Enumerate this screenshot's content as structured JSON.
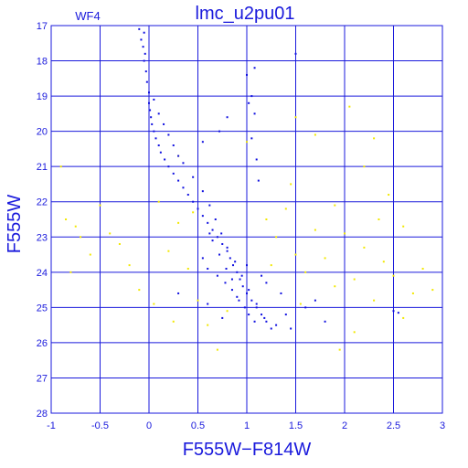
{
  "chart_data": {
    "type": "scatter",
    "title": "lmc_u2pu01",
    "panel_label": "WF4",
    "xlabel": "F555W−F814W",
    "ylabel": "F555W",
    "xlim": [
      -1,
      3
    ],
    "ylim": [
      28,
      17
    ],
    "y_inverted": true,
    "grid": true,
    "xticks": [
      -1,
      -0.5,
      0,
      0.5,
      1,
      1.5,
      2,
      2.5,
      3
    ],
    "xtick_labels": [
      "-1",
      "-0.5",
      "0",
      "0.5",
      "1",
      "1.5",
      "2",
      "2.5",
      "3"
    ],
    "yticks": [
      17,
      18,
      19,
      20,
      21,
      22,
      23,
      24,
      25,
      26,
      27,
      28
    ],
    "ytick_labels": [
      "17",
      "18",
      "19",
      "20",
      "21",
      "22",
      "23",
      "24",
      "25",
      "26",
      "27",
      "28"
    ],
    "colors": {
      "frame": "#1a1adc",
      "grid": "#1a1adc",
      "main": "#1010e0",
      "field": "#f2e800"
    },
    "series": [
      {
        "color": "#1010e0",
        "points": [
          [
            -0.1,
            17.1
          ],
          [
            -0.05,
            17.2
          ],
          [
            -0.08,
            17.4
          ],
          [
            -0.06,
            17.6
          ],
          [
            -0.04,
            17.8
          ],
          [
            -0.05,
            18.0
          ],
          [
            -0.03,
            18.3
          ],
          [
            -0.02,
            18.6
          ],
          [
            0.0,
            18.9
          ],
          [
            0.0,
            19.2
          ],
          [
            0.01,
            19.4
          ],
          [
            0.02,
            19.6
          ],
          [
            0.03,
            19.8
          ],
          [
            0.05,
            20.0
          ],
          [
            0.07,
            20.2
          ],
          [
            0.1,
            20.4
          ],
          [
            0.12,
            20.6
          ],
          [
            0.16,
            20.8
          ],
          [
            0.2,
            21.0
          ],
          [
            0.25,
            21.2
          ],
          [
            0.3,
            21.4
          ],
          [
            0.35,
            21.6
          ],
          [
            0.4,
            21.8
          ],
          [
            0.45,
            22.0
          ],
          [
            0.5,
            22.2
          ],
          [
            0.55,
            22.4
          ],
          [
            0.6,
            22.6
          ],
          [
            0.65,
            22.8
          ],
          [
            0.7,
            23.0
          ],
          [
            0.75,
            23.2
          ],
          [
            0.8,
            23.4
          ],
          [
            0.83,
            23.6
          ],
          [
            0.86,
            23.8
          ],
          [
            0.9,
            24.0
          ],
          [
            0.93,
            24.2
          ],
          [
            0.96,
            24.4
          ],
          [
            1.0,
            24.6
          ],
          [
            1.05,
            24.8
          ],
          [
            1.1,
            25.0
          ],
          [
            1.15,
            25.2
          ],
          [
            1.2,
            25.4
          ],
          [
            1.25,
            25.6
          ],
          [
            0.05,
            19.1
          ],
          [
            0.1,
            19.5
          ],
          [
            0.15,
            19.8
          ],
          [
            0.2,
            20.1
          ],
          [
            0.25,
            20.4
          ],
          [
            0.3,
            20.7
          ],
          [
            0.35,
            20.9
          ],
          [
            0.45,
            21.3
          ],
          [
            0.55,
            21.7
          ],
          [
            0.62,
            22.1
          ],
          [
            0.68,
            22.5
          ],
          [
            0.74,
            22.9
          ],
          [
            0.8,
            23.3
          ],
          [
            0.88,
            23.7
          ],
          [
            0.95,
            24.1
          ],
          [
            1.02,
            24.5
          ],
          [
            1.1,
            24.9
          ],
          [
            1.18,
            25.3
          ],
          [
            0.55,
            20.3
          ],
          [
            0.72,
            20.0
          ],
          [
            0.8,
            19.6
          ],
          [
            1.02,
            19.2
          ],
          [
            1.0,
            18.4
          ],
          [
            1.05,
            19.0
          ],
          [
            1.08,
            19.5
          ],
          [
            1.05,
            20.2
          ],
          [
            1.1,
            20.8
          ],
          [
            1.12,
            21.4
          ],
          [
            1.5,
            17.8
          ],
          [
            1.08,
            18.2
          ],
          [
            0.3,
            24.6
          ],
          [
            0.6,
            24.9
          ],
          [
            0.75,
            25.3
          ],
          [
            1.3,
            25.5
          ],
          [
            1.4,
            25.2
          ],
          [
            1.6,
            25.0
          ],
          [
            1.7,
            24.8
          ],
          [
            1.8,
            25.4
          ],
          [
            2.5,
            25.1
          ],
          [
            2.55,
            25.15
          ],
          [
            1.45,
            25.6
          ],
          [
            0.9,
            24.7
          ],
          [
            1.2,
            24.3
          ],
          [
            1.35,
            24.6
          ],
          [
            0.6,
            23.9
          ],
          [
            0.7,
            24.1
          ],
          [
            0.78,
            24.3
          ],
          [
            0.85,
            24.5
          ],
          [
            0.92,
            24.8
          ],
          [
            0.98,
            25.0
          ],
          [
            1.02,
            25.2
          ],
          [
            1.08,
            25.4
          ],
          [
            0.65,
            23.1
          ],
          [
            0.72,
            23.5
          ],
          [
            0.79,
            23.9
          ],
          [
            0.85,
            24.2
          ],
          [
            1.0,
            23.8
          ],
          [
            1.15,
            24.1
          ],
          [
            0.55,
            23.6
          ],
          [
            0.62,
            22.9
          ]
        ]
      },
      {
        "color": "#f2e800",
        "points": [
          [
            -0.9,
            21.0
          ],
          [
            -0.85,
            22.5
          ],
          [
            -0.75,
            22.7
          ],
          [
            -0.6,
            23.5
          ],
          [
            -0.4,
            22.9
          ],
          [
            -0.3,
            23.2
          ],
          [
            -0.2,
            23.8
          ],
          [
            -0.1,
            24.5
          ],
          [
            0.1,
            22.0
          ],
          [
            0.2,
            23.4
          ],
          [
            0.3,
            22.6
          ],
          [
            0.4,
            23.9
          ],
          [
            0.5,
            24.8
          ],
          [
            0.6,
            25.5
          ],
          [
            0.7,
            26.2
          ],
          [
            0.8,
            25.1
          ],
          [
            1.2,
            22.5
          ],
          [
            1.3,
            23.0
          ],
          [
            1.4,
            22.2
          ],
          [
            1.5,
            23.5
          ],
          [
            1.6,
            24.0
          ],
          [
            1.7,
            22.8
          ],
          [
            1.8,
            23.6
          ],
          [
            1.9,
            24.4
          ],
          [
            2.0,
            22.9
          ],
          [
            2.1,
            24.2
          ],
          [
            2.2,
            23.3
          ],
          [
            2.3,
            24.8
          ],
          [
            2.4,
            23.7
          ],
          [
            2.5,
            24.1
          ],
          [
            2.6,
            22.7
          ],
          [
            2.7,
            24.6
          ],
          [
            2.8,
            23.9
          ],
          [
            2.9,
            24.5
          ],
          [
            1.0,
            20.3
          ],
          [
            0.3,
            20.7
          ],
          [
            1.9,
            22.1
          ],
          [
            2.2,
            21.0
          ],
          [
            1.5,
            19.6
          ],
          [
            1.7,
            20.1
          ],
          [
            2.05,
            19.3
          ],
          [
            2.3,
            20.2
          ],
          [
            -0.5,
            22.1
          ],
          [
            -0.8,
            24.0
          ],
          [
            0.05,
            24.9
          ],
          [
            0.25,
            25.4
          ],
          [
            2.1,
            25.7
          ],
          [
            1.55,
            24.9
          ],
          [
            1.25,
            23.8
          ],
          [
            2.35,
            22.5
          ],
          [
            2.6,
            25.3
          ],
          [
            -0.7,
            23.0
          ],
          [
            0.45,
            22.3
          ],
          [
            1.45,
            21.5
          ],
          [
            2.45,
            21.8
          ],
          [
            1.95,
            26.2
          ]
        ]
      }
    ]
  }
}
